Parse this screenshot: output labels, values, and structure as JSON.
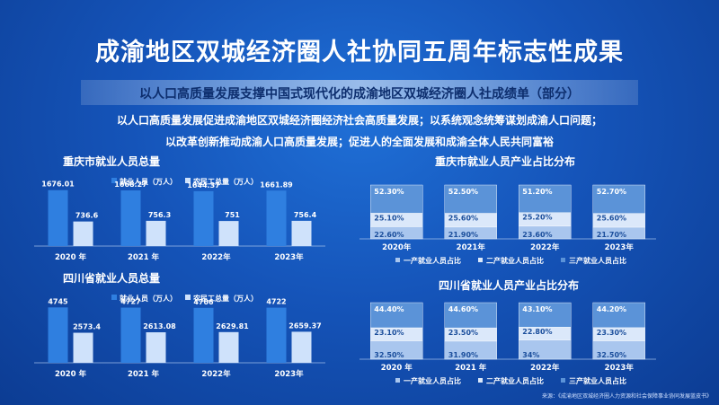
{
  "title": "成渝地区双城经济圈人社协同五周年标志性成果",
  "banner": "以人口高质量发展支撑中国式现代化的成渝地区双城经济圈人社成绩单（部分）",
  "slogan_line1": "以人口高质量发展促进成渝地区双城经济圈经济社会高质量发展；以系统观念统筹谋划成渝人口问题；",
  "slogan_line2": "以改革创新推动成渝人口高质量发展；促进人的全面发展和成渝全体人民共同富裕",
  "source": "来源：《成渝地区双城经济圈人力资源和社会保障事业协同发展蓝皮书》",
  "colors": {
    "bar_dark": "#2f7fe0",
    "bar_light": "#cfe2fb",
    "seg_primary": "#a9c6ee",
    "seg_secondary": "#dbe8fa",
    "seg_tertiary": "#5b93d8"
  },
  "chart_data": [
    {
      "type": "bar",
      "title": "重庆市就业人员总量",
      "categories": [
        "2020 年",
        "2021 年",
        "2022年",
        "2023年"
      ],
      "series": [
        {
          "name": "就业人员（万人）",
          "values": [
            1676.01,
            1668.27,
            1644.37,
            1661.89
          ],
          "labels": [
            "1676.01",
            "1668.27",
            "1644.37",
            "1661.89"
          ]
        },
        {
          "name": "农民工总量（万人）",
          "values": [
            736.6,
            756.3,
            751,
            756.4
          ],
          "labels": [
            "736.6",
            "756.3",
            "751",
            "756.4"
          ]
        }
      ],
      "ylim": [
        0,
        2100
      ]
    },
    {
      "type": "bar",
      "title": "四川省就业人员总量",
      "categories": [
        "2020 年",
        "2021 年",
        "2022年",
        "2023年"
      ],
      "series": [
        {
          "name": "就业人员（万人）",
          "values": [
            4745,
            4727,
            4706,
            4722
          ],
          "labels": [
            "4745",
            "4727",
            "4706",
            "4722"
          ]
        },
        {
          "name": "农民工总量（万人）",
          "values": [
            2573.4,
            2613.08,
            2629.81,
            2659.37
          ],
          "labels": [
            "2573.4",
            "2613.08",
            "2629.81",
            "2659.37"
          ]
        }
      ],
      "ylim": [
        0,
        6000
      ]
    },
    {
      "type": "bar",
      "stacked": true,
      "title": "重庆市就业人员产业占比分布",
      "categories": [
        "2020年",
        "2021年",
        "2022年",
        "2023年"
      ],
      "series": [
        {
          "name": "一产就业人员占比",
          "values": [
            22.6,
            21.9,
            23.6,
            21.7
          ],
          "labels": [
            "22.60%",
            "21.90%",
            "23.60%",
            "21.70%"
          ]
        },
        {
          "name": "二产就业人员占比",
          "values": [
            25.1,
            25.6,
            25.2,
            25.6
          ],
          "labels": [
            "25.10%",
            "25.60%",
            "25.20%",
            "25.60%"
          ]
        },
        {
          "name": "三产就业人员占比",
          "values": [
            52.3,
            52.5,
            51.2,
            52.7
          ],
          "labels": [
            "52.30%",
            "52.50%",
            "51.20%",
            "52.70%"
          ]
        }
      ]
    },
    {
      "type": "bar",
      "stacked": true,
      "title": "四川省就业人员产业占比分布",
      "categories": [
        "2020 年",
        "2021 年",
        "2022年",
        "2023年"
      ],
      "series": [
        {
          "name": "一产就业人员占比",
          "values": [
            32.5,
            31.9,
            34,
            32.5
          ],
          "labels": [
            "32.50%",
            "31.90%",
            "34%",
            "32.50%"
          ]
        },
        {
          "name": "二产就业人员占比",
          "values": [
            23.1,
            23.5,
            22.8,
            23.3
          ],
          "labels": [
            "23.10%",
            "23.50%",
            "22.80%",
            "23.30%"
          ]
        },
        {
          "name": "三产就业人员占比",
          "values": [
            44.4,
            44.6,
            43.1,
            44.2
          ],
          "labels": [
            "44.40%",
            "44.60%",
            "43.10%",
            "44.20%"
          ]
        }
      ]
    }
  ]
}
